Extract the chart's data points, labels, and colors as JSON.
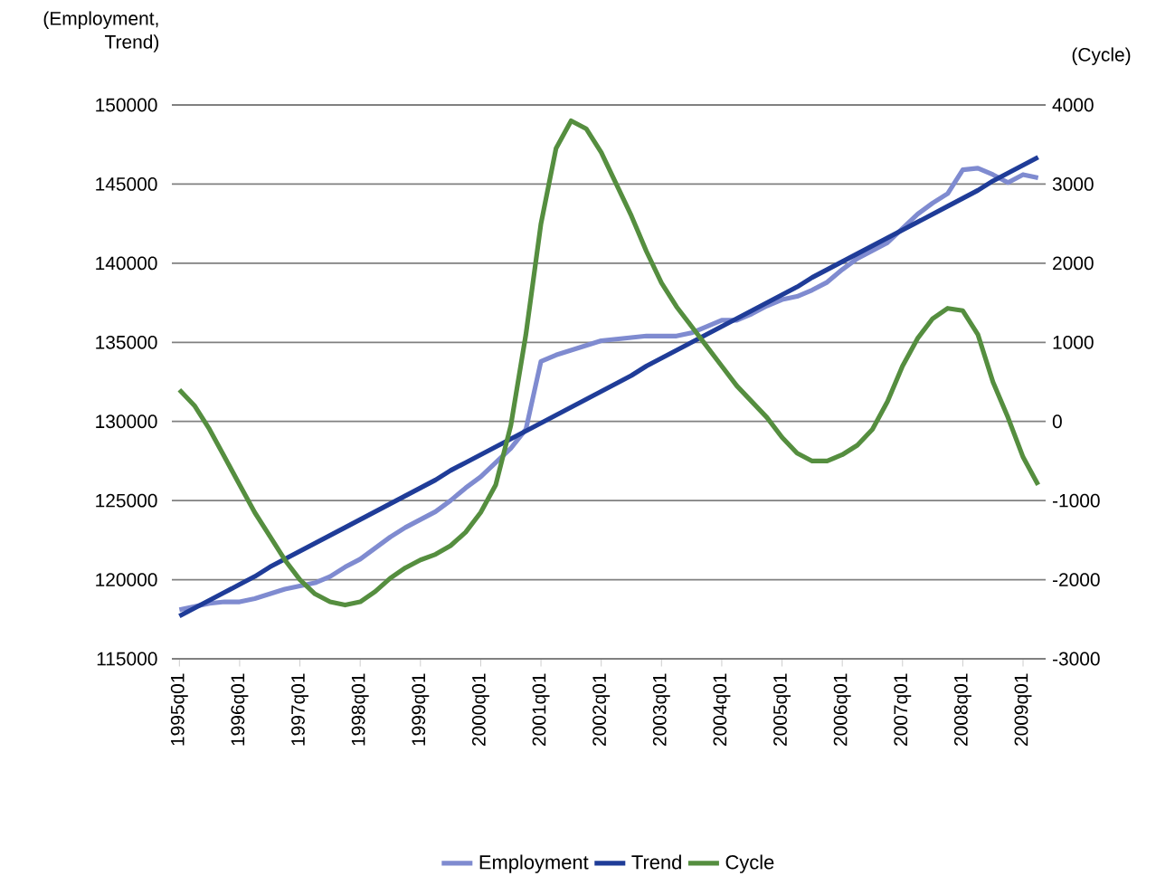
{
  "chart_data": {
    "type": "line",
    "ylabel": "(Employment, Trend)",
    "y2label": "(Cycle)",
    "categories": [
      "1995q01",
      null,
      null,
      null,
      "1996q01",
      null,
      null,
      null,
      "1997q01",
      null,
      null,
      null,
      "1998q01",
      null,
      null,
      null,
      "1999q01",
      null,
      null,
      null,
      "2000q01",
      null,
      null,
      null,
      "2001q01",
      null,
      null,
      null,
      "2002q01",
      null,
      null,
      null,
      "2003q01",
      null,
      null,
      null,
      "2004q01",
      null,
      null,
      null,
      "2005q01",
      null,
      null,
      null,
      "2006q01",
      null,
      null,
      null,
      "2007q01",
      null,
      null,
      null,
      "2008q01",
      null,
      null,
      null,
      "2009q01",
      null
    ],
    "ylim": [
      115000,
      150000
    ],
    "yticks": [
      115000,
      120000,
      125000,
      130000,
      135000,
      140000,
      145000,
      150000
    ],
    "y2lim": [
      -3000,
      4000
    ],
    "y2ticks": [
      -3000,
      -2000,
      -1000,
      0,
      1000,
      2000,
      3000,
      4000
    ],
    "grid": "y",
    "legend": "bottom",
    "marker": "none",
    "line_style": "solid",
    "series": [
      {
        "name": "Employment",
        "color": "#7f8bd0",
        "values": [
          118100,
          118300,
          118500,
          118600,
          118600,
          118800,
          119100,
          119400,
          119600,
          119800,
          120200,
          120800,
          121300,
          122000,
          122700,
          123300,
          123800,
          124300,
          125000,
          125800,
          126500,
          127400,
          128300,
          129500,
          133800,
          134200,
          134500,
          134800,
          135100,
          135200,
          135300,
          135400,
          135400,
          135400,
          135600,
          136000,
          136400,
          136400,
          136800,
          137300,
          137700,
          137900,
          138300,
          138800,
          139600,
          140300,
          140800,
          141300,
          142200,
          143100,
          143800,
          144400,
          145900,
          146000,
          145600,
          145100,
          145600,
          145400
        ]
      },
      {
        "name": "Trend",
        "color": "#1f3c98",
        "values": [
          117700,
          118200,
          118700,
          119200,
          119700,
          120200,
          120800,
          121300,
          121800,
          122300,
          122800,
          123300,
          123800,
          124300,
          124800,
          125300,
          125800,
          126300,
          126900,
          127400,
          127900,
          128400,
          128900,
          129400,
          129900,
          130400,
          130900,
          131400,
          131900,
          132400,
          132900,
          133500,
          134000,
          134500,
          135000,
          135500,
          136000,
          136500,
          137000,
          137500,
          138000,
          138500,
          139100,
          139600,
          140100,
          140600,
          141100,
          141600,
          142100,
          142600,
          143100,
          143600,
          144100,
          144600,
          145200,
          145700,
          146200,
          146700
        ]
      },
      {
        "name": "Cycle",
        "color": "#558e3f",
        "axis": "y2",
        "values": [
          400,
          200,
          -100,
          -450,
          -800,
          -1150,
          -1450,
          -1750,
          -2000,
          -2180,
          -2280,
          -2320,
          -2280,
          -2150,
          -1980,
          -1850,
          -1750,
          -1680,
          -1570,
          -1400,
          -1150,
          -800,
          -50,
          1100,
          2500,
          3450,
          3800,
          3700,
          3400,
          3000,
          2600,
          2150,
          1750,
          1450,
          1200,
          950,
          700,
          450,
          250,
          50,
          -200,
          -400,
          -500,
          -500,
          -420,
          -300,
          -100,
          250,
          700,
          1050,
          1300,
          1430,
          1400,
          1100,
          500,
          50,
          -450,
          -800
        ]
      }
    ]
  }
}
